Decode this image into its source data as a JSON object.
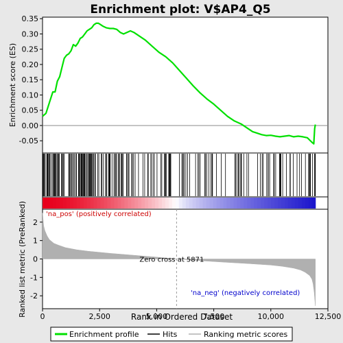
{
  "chart_data": {
    "type": "line",
    "title": "Enrichment plot: V$AP4_Q5",
    "xlabel": "Rank in Ordered Dataset",
    "ylabel_top": "Enrichment score (ES)",
    "ylabel_bottom": "Ranked list metric (PreRanked)",
    "xlim": [
      0,
      12500
    ],
    "x_ticks": [
      0,
      2500,
      5000,
      7500,
      10000,
      12500
    ],
    "x_tick_labels": [
      "0",
      "2,500",
      "5,000",
      "7,500",
      "10,000",
      "12,500"
    ],
    "es_ylim": [
      -0.09,
      0.355
    ],
    "es_ticks": [
      -0.05,
      0.0,
      0.05,
      0.1,
      0.15,
      0.2,
      0.25,
      0.3,
      0.35
    ],
    "es_tick_labels": [
      "-0.05",
      "0.00",
      "0.05",
      "0.10",
      "0.15",
      "0.20",
      "0.25",
      "0.30",
      "0.35"
    ],
    "metric_ylim": [
      -2.7,
      2.7
    ],
    "metric_ticks": [
      -2,
      -1,
      0,
      1,
      2
    ],
    "metric_tick_labels": [
      "-2",
      "-1",
      "0",
      "1",
      "2"
    ],
    "series": [
      {
        "name": "Enrichment profile",
        "color": "#00e000",
        "x": [
          0,
          150,
          300,
          450,
          550,
          650,
          750,
          850,
          950,
          1050,
          1150,
          1250,
          1350,
          1450,
          1550,
          1650,
          1750,
          1850,
          1950,
          2050,
          2150,
          2250,
          2350,
          2450,
          2550,
          2650,
          2800,
          2950,
          3100,
          3250,
          3400,
          3550,
          3700,
          3850,
          4000,
          4200,
          4500,
          4800,
          5100,
          5400,
          5700,
          6000,
          6300,
          6600,
          6900,
          7200,
          7500,
          7800,
          8100,
          8400,
          8700,
          9000,
          9200,
          9400,
          9600,
          9800,
          10000,
          10200,
          10400,
          10600,
          10800,
          11000,
          11200,
          11400,
          11600,
          11800,
          11880,
          11920,
          11950
        ],
        "y": [
          0.03,
          0.04,
          0.075,
          0.11,
          0.11,
          0.145,
          0.16,
          0.19,
          0.22,
          0.23,
          0.235,
          0.245,
          0.265,
          0.26,
          0.27,
          0.285,
          0.29,
          0.3,
          0.31,
          0.315,
          0.32,
          0.33,
          0.335,
          0.335,
          0.33,
          0.325,
          0.32,
          0.318,
          0.318,
          0.315,
          0.305,
          0.3,
          0.305,
          0.31,
          0.305,
          0.295,
          0.28,
          0.26,
          0.24,
          0.225,
          0.205,
          0.18,
          0.155,
          0.13,
          0.107,
          0.087,
          0.07,
          0.05,
          0.03,
          0.015,
          0.005,
          -0.01,
          -0.02,
          -0.025,
          -0.03,
          -0.033,
          -0.032,
          -0.035,
          -0.037,
          -0.035,
          -0.033,
          -0.037,
          -0.035,
          -0.037,
          -0.04,
          -0.055,
          -0.06,
          -0.01,
          0.003
        ]
      }
    ],
    "metric_curve": {
      "name": "Ranking metric scores",
      "color": "#b0b0b0",
      "x": [
        0,
        50,
        100,
        200,
        300,
        500,
        700,
        1000,
        1500,
        2000,
        3000,
        4000,
        5000,
        5871,
        7000,
        8000,
        9000,
        10000,
        10500,
        11000,
        11300,
        11500,
        11700,
        11800,
        11850,
        11900,
        11950
      ],
      "y": [
        2.5,
        1.8,
        1.55,
        1.25,
        1.05,
        0.85,
        0.75,
        0.62,
        0.5,
        0.42,
        0.3,
        0.2,
        0.1,
        0.0,
        -0.1,
        -0.18,
        -0.25,
        -0.33,
        -0.4,
        -0.5,
        -0.6,
        -0.72,
        -0.9,
        -1.1,
        -1.35,
        -1.8,
        -2.55
      ]
    },
    "hits_legend": "Hits",
    "zero_cross_label": "Zero cross at 5871",
    "zero_cross_x": 5871,
    "na_pos_label": "'na_pos' (positively correlated)",
    "na_neg_label": "'na_neg' (negatively correlated)",
    "legend": {
      "placement": "bottom",
      "entries": [
        "Enrichment profile",
        "Hits",
        "Ranking metric scores"
      ]
    },
    "colors": {
      "es_line": "#00e000",
      "pos_zone": "#e8001c",
      "neg_zone": "#1a14cc",
      "pos_text": "#cc0000",
      "neg_text": "#0000cc",
      "metric_fill": "#b0b0b0"
    }
  }
}
